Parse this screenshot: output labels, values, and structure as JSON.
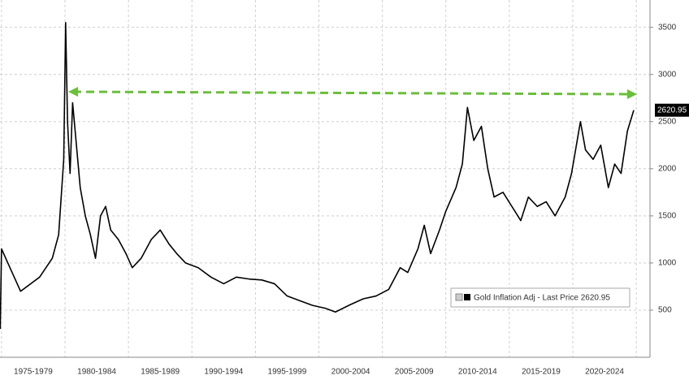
{
  "chart_data": {
    "type": "line",
    "x": [
      1974.9,
      1975.0,
      1975.5,
      1976.0,
      1976.5,
      1977.0,
      1977.5,
      1978.0,
      1978.5,
      1979.0,
      1979.5,
      1979.9,
      1980.05,
      1980.2,
      1980.4,
      1980.6,
      1980.8,
      1981.2,
      1981.6,
      1982.0,
      1982.4,
      1982.8,
      1983.2,
      1983.6,
      1984.2,
      1984.8,
      1985.3,
      1986.0,
      1986.8,
      1987.5,
      1988.2,
      1988.8,
      1989.5,
      1990.5,
      1991.5,
      1992.5,
      1993.5,
      1994.5,
      1995.5,
      1996.5,
      1997.5,
      1998.5,
      1999.5,
      2000.5,
      2001.3,
      2002.5,
      2003.5,
      2004.5,
      2005.5,
      2006.4,
      2007.0,
      2007.8,
      2008.3,
      2008.8,
      2009.5,
      2010.0,
      2010.8,
      2011.3,
      2011.7,
      2012.2,
      2012.8,
      2013.3,
      2013.8,
      2014.5,
      2015.2,
      2015.9,
      2016.5,
      2017.2,
      2017.9,
      2018.6,
      2019.4,
      2019.9,
      2020.6,
      2021.0,
      2021.6,
      2022.2,
      2022.8,
      2023.3,
      2023.8,
      2024.3,
      2024.8
    ],
    "series": [
      {
        "name": "Gold Inflation Adj - Last Price 2620.95",
        "color": "#000000",
        "values": [
          300,
          1150,
          1000,
          850,
          700,
          750,
          800,
          850,
          950,
          1050,
          1300,
          2100,
          3550,
          2500,
          1950,
          2700,
          2400,
          1800,
          1500,
          1300,
          1050,
          1500,
          1600,
          1350,
          1250,
          1100,
          950,
          1050,
          1250,
          1350,
          1200,
          1100,
          1000,
          950,
          850,
          780,
          850,
          830,
          820,
          780,
          650,
          600,
          550,
          520,
          480,
          560,
          620,
          650,
          720,
          950,
          900,
          1150,
          1400,
          1100,
          1350,
          1550,
          1800,
          2050,
          2650,
          2300,
          2450,
          2000,
          1700,
          1750,
          1600,
          1450,
          1700,
          1600,
          1650,
          1500,
          1700,
          1950,
          2500,
          2200,
          2100,
          2250,
          1800,
          2050,
          1950,
          2400,
          2620.95
        ]
      }
    ],
    "xlim": [
      1974.88,
      2026.08
    ],
    "xticks": [
      {
        "value": 1977.5,
        "label": "1975-1979"
      },
      {
        "value": 1982.5,
        "label": "1980-1984"
      },
      {
        "value": 1987.5,
        "label": "1985-1989"
      },
      {
        "value": 1992.5,
        "label": "1990-1994"
      },
      {
        "value": 1997.5,
        "label": "1995-1999"
      },
      {
        "value": 2002.5,
        "label": "2000-2004"
      },
      {
        "value": 2007.5,
        "label": "2005-2009"
      },
      {
        "value": 2012.5,
        "label": "2010-2014"
      },
      {
        "value": 2017.5,
        "label": "2015-2019"
      },
      {
        "value": 2022.5,
        "label": "2020-2024"
      }
    ],
    "ylim": [
      0,
      3790
    ],
    "yticks": [
      500,
      1000,
      1500,
      2000,
      2500,
      3000,
      3500
    ],
    "grid": true
  }
}
